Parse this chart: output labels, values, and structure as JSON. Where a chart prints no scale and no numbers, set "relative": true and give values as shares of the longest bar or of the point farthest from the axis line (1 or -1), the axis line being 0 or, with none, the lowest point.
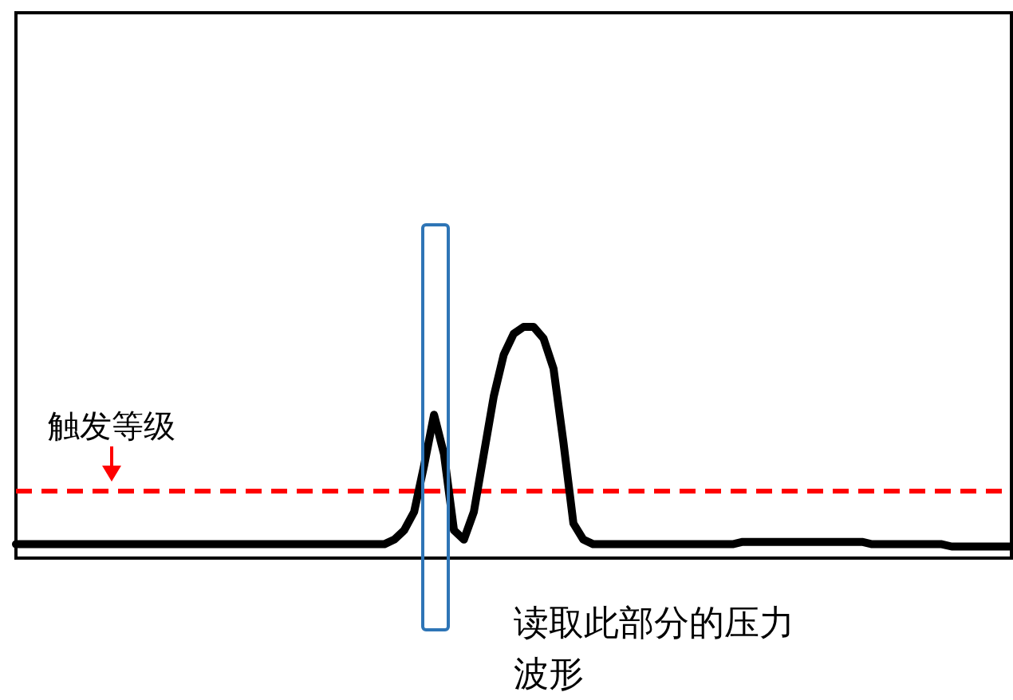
{
  "chart_data": {
    "type": "line",
    "relative": true,
    "color": "#000000",
    "categories": [
      null,
      null,
      null,
      null,
      null,
      null,
      null,
      null,
      null,
      null,
      null,
      null,
      null,
      null,
      null,
      null,
      null,
      null,
      null,
      null,
      null,
      null,
      null,
      null,
      null,
      null,
      null,
      null,
      null,
      null,
      null,
      null,
      null,
      null,
      null,
      null,
      null,
      null,
      null,
      null,
      null,
      null,
      null,
      null,
      null,
      null,
      null,
      null,
      null,
      null,
      null,
      null,
      null,
      null,
      null,
      null,
      null,
      null,
      null,
      null,
      null,
      null,
      null,
      null,
      null,
      null,
      null,
      null,
      null,
      null,
      null,
      null,
      null,
      null,
      null,
      null,
      null,
      null,
      null,
      null,
      null,
      null,
      null,
      null,
      null,
      null,
      null,
      null,
      null,
      null,
      null,
      null,
      null,
      null,
      null,
      null,
      null,
      null,
      null,
      null,
      null
    ],
    "values": [
      0.06,
      0.06,
      0.06,
      0.06,
      0.06,
      0.06,
      0.06,
      0.06,
      0.06,
      0.06,
      0.06,
      0.06,
      0.06,
      0.06,
      0.06,
      0.06,
      0.06,
      0.06,
      0.06,
      0.06,
      0.06,
      0.06,
      0.06,
      0.06,
      0.06,
      0.06,
      0.06,
      0.06,
      0.06,
      0.06,
      0.06,
      0.06,
      0.06,
      0.06,
      0.06,
      0.06,
      0.06,
      0.06,
      0.08,
      0.12,
      0.2,
      0.4,
      0.62,
      0.45,
      0.12,
      0.08,
      0.2,
      0.45,
      0.7,
      0.88,
      0.97,
      1.0,
      1.0,
      0.95,
      0.82,
      0.5,
      0.15,
      0.08,
      0.06,
      0.06,
      0.06,
      0.06,
      0.06,
      0.06,
      0.06,
      0.06,
      0.06,
      0.06,
      0.06,
      0.06,
      0.06,
      0.06,
      0.06,
      0.07,
      0.07,
      0.07,
      0.07,
      0.07,
      0.07,
      0.07,
      0.07,
      0.07,
      0.07,
      0.07,
      0.07,
      0.07,
      0.06,
      0.06,
      0.06,
      0.06,
      0.06,
      0.06,
      0.06,
      0.06,
      0.05,
      0.05,
      0.05,
      0.05,
      0.05,
      0.05,
      0.05
    ],
    "ref_lines": [
      {
        "axis": "y",
        "value": 0.29,
        "label": "触发等级",
        "color": "#ff0000",
        "line_style": "dashed"
      }
    ],
    "annotations": [
      "读取此部分的压力波形"
    ]
  }
}
